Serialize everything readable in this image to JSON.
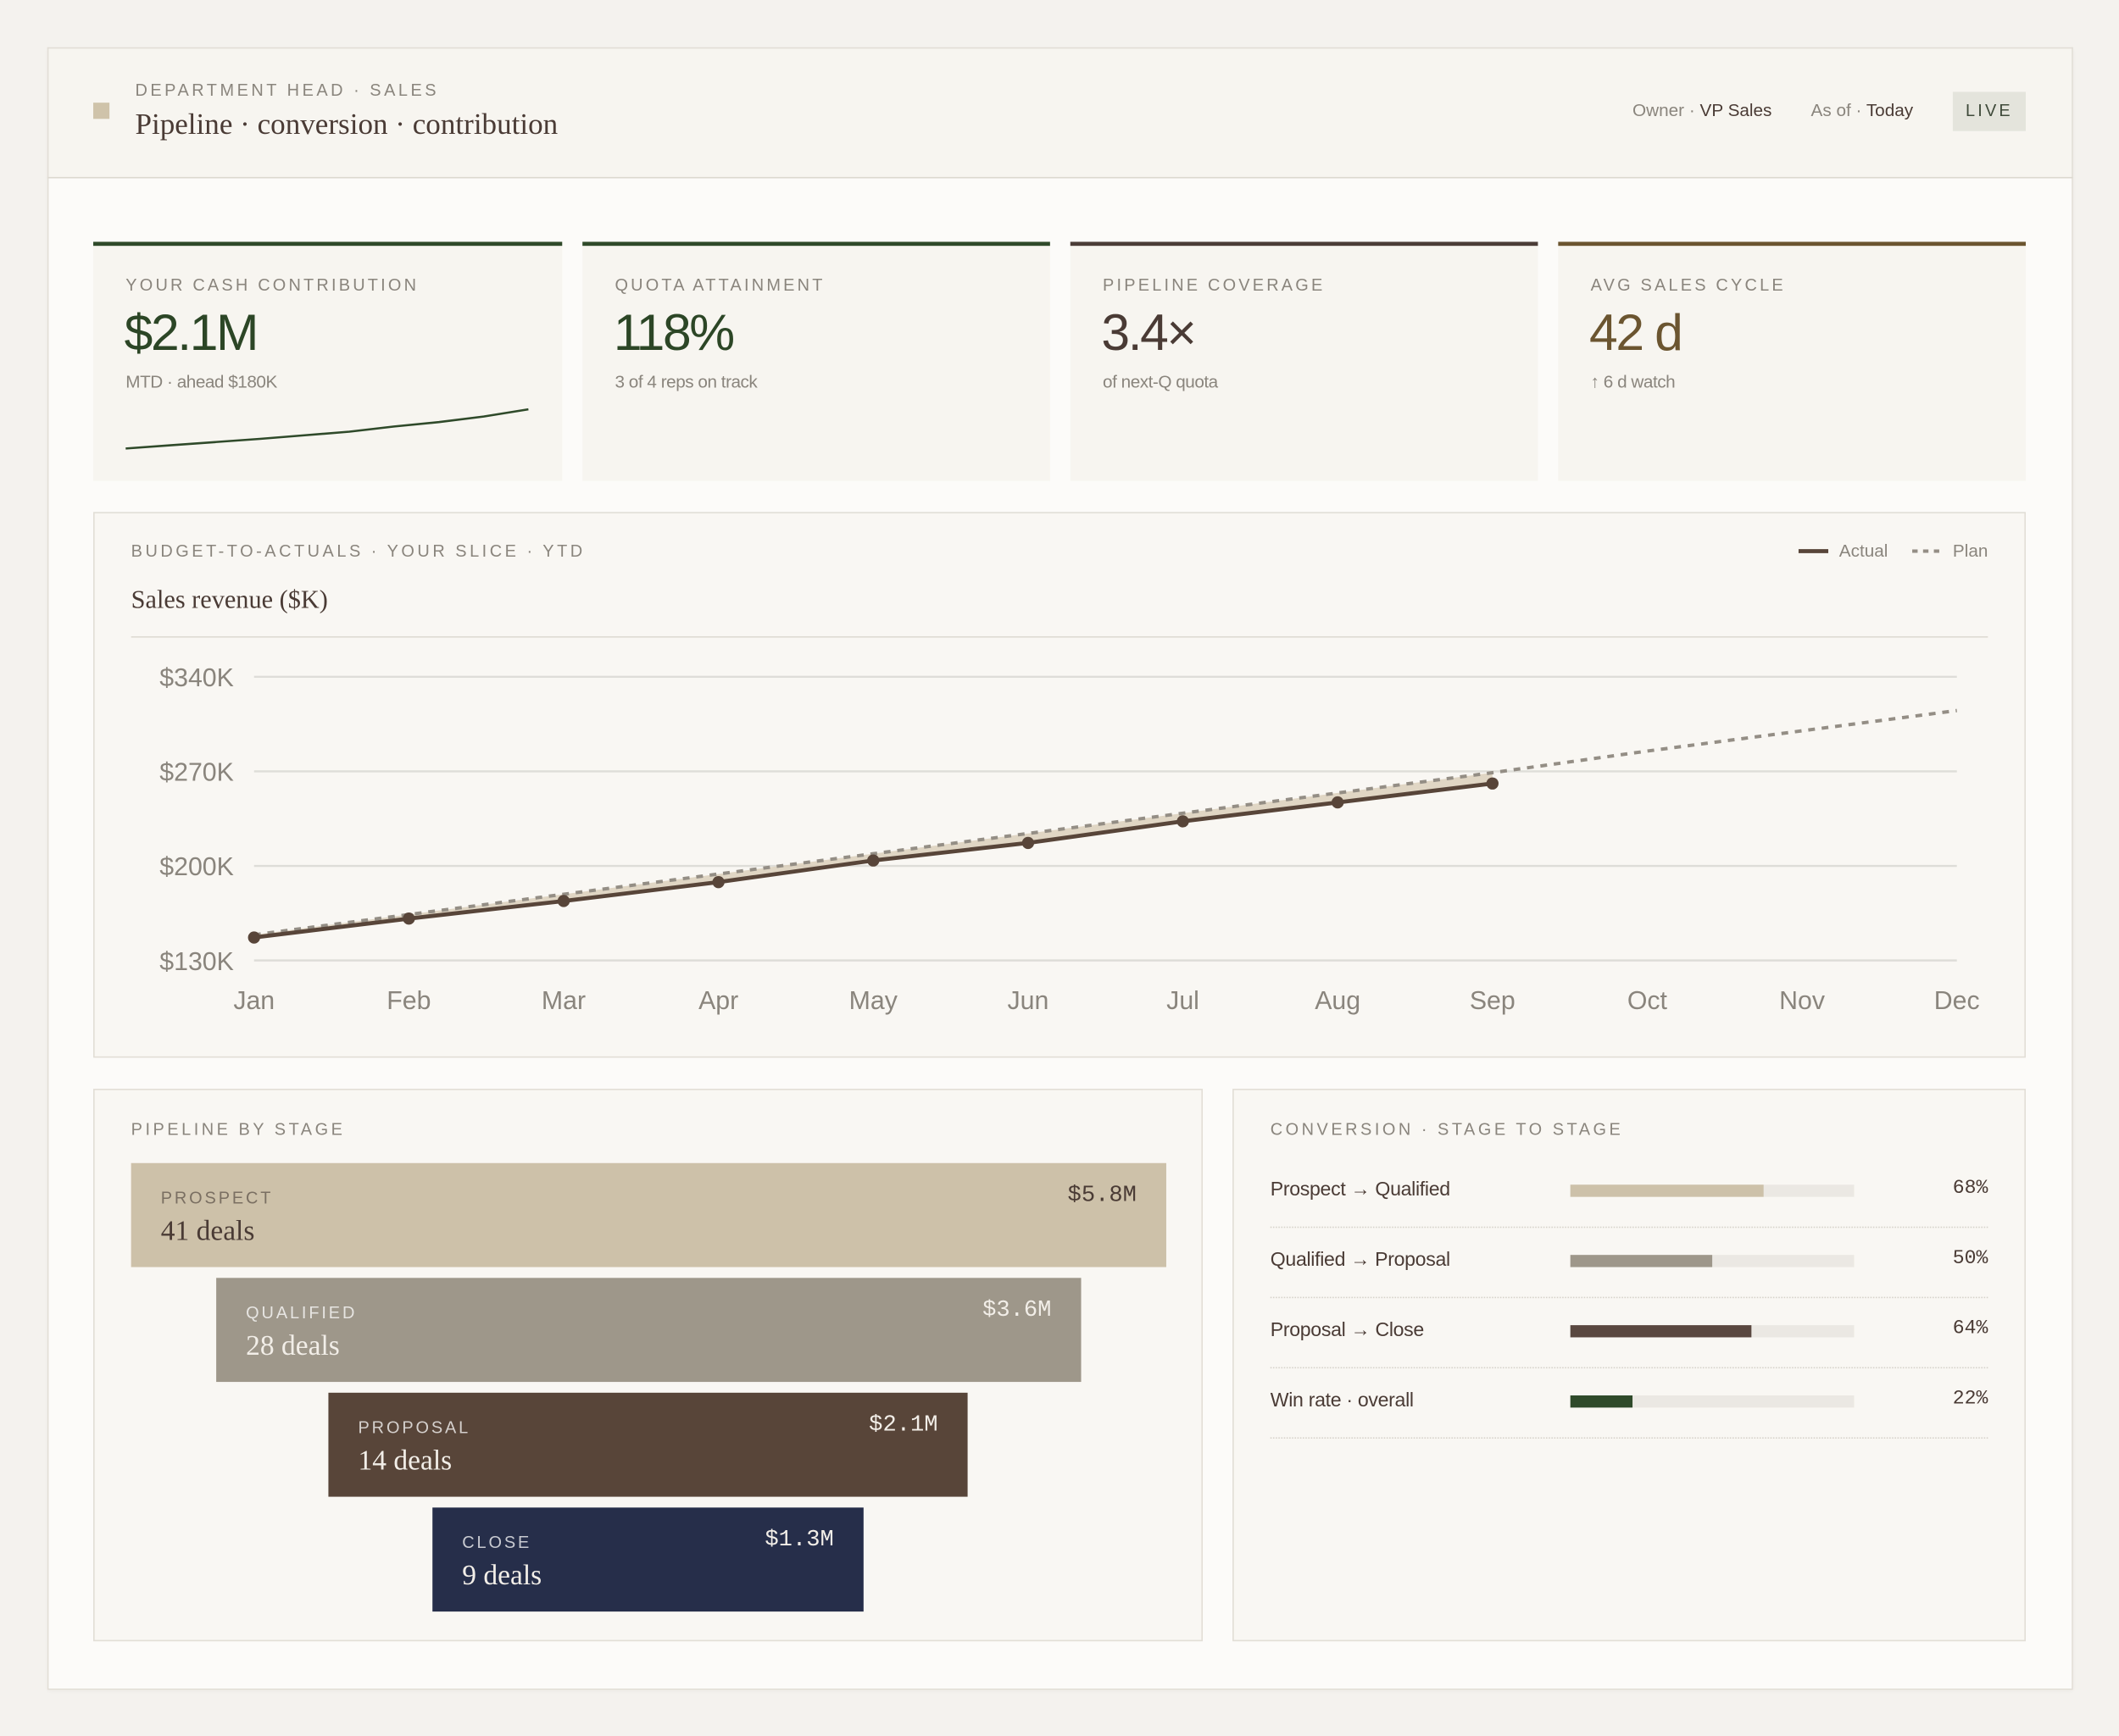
{
  "header": {
    "eyebrow": "DEPARTMENT HEAD · SALES",
    "title": "Pipeline · conversion · contribution",
    "owner_label": "Owner ·",
    "owner": "VP Sales",
    "asof_label": "As of ·",
    "asof": "Today",
    "badge": "LIVE"
  },
  "kpis": [
    {
      "label": "YOUR CASH CONTRIBUTION",
      "value": "$2.1M",
      "sub": "MTD · ahead $180K",
      "color": "#2c4626",
      "accent": "#2f4a2a",
      "sparkline": [
        1.0,
        1.08,
        1.16,
        1.24,
        1.33,
        1.42,
        1.55,
        1.66,
        1.8,
        1.98
      ]
    },
    {
      "label": "QUOTA ATTAINMENT",
      "value": "118%",
      "sub": "3 of 4 reps on track",
      "color": "#2c4626",
      "accent": "#2f4a2a"
    },
    {
      "label": "PIPELINE COVERAGE",
      "value": "3.4×",
      "sub": "of next-Q quota",
      "color": "#4a3b35",
      "accent": "#4b3d38"
    },
    {
      "label": "AVG SALES CYCLE",
      "value": "42 d",
      "sub": "↑ 6 d watch",
      "color": "#6b5530",
      "accent": "#6b5530"
    }
  ],
  "funnel": {
    "title": "PIPELINE BY STAGE",
    "stages": [
      {
        "name": "PROSPECT",
        "deals": "41 deals",
        "value": "$5.8M",
        "color": "#cdc1a9"
      },
      {
        "name": "QUALIFIED",
        "deals": "28 deals",
        "value": "$3.6M",
        "color": "#9e978a"
      },
      {
        "name": "PROPOSAL",
        "deals": "14 deals",
        "value": "$2.1M",
        "color": "#584539"
      },
      {
        "name": "CLOSE",
        "deals": "9 deals",
        "value": "$1.3M",
        "color": "#262e4a"
      }
    ]
  },
  "chart_data": [
    {
      "type": "line",
      "title": "BUDGET-TO-ACTUALS · YOUR SLICE · YTD",
      "subtitle": "Sales revenue ($K)",
      "legend": "top-right",
      "grid": true,
      "categories": [
        "Jan",
        "Feb",
        "Mar",
        "Apr",
        "May",
        "Jun",
        "Jul",
        "Aug",
        "Sep",
        "Oct",
        "Nov",
        "Dec"
      ],
      "series": [
        {
          "name": "Actual",
          "color": "#584539",
          "dash": false,
          "markers": true,
          "values": [
            147,
            161,
            174,
            188,
            204,
            217,
            233,
            247,
            261,
            null,
            null,
            null
          ]
        },
        {
          "name": "Plan",
          "color": "#948e85",
          "dash": true,
          "markers": false,
          "values": [
            149,
            164,
            179,
            194,
            209,
            224,
            239,
            254,
            269,
            285,
            300,
            315
          ]
        }
      ],
      "fill_between": "#d9cdb8",
      "ylim": [
        130,
        340
      ],
      "yticks": [
        {
          "value": 130,
          "label": "$130K"
        },
        {
          "value": 200,
          "label": "$200K"
        },
        {
          "value": 270,
          "label": "$270K"
        },
        {
          "value": 340,
          "label": "$340K"
        }
      ]
    },
    {
      "type": "bar",
      "orientation": "horizontal",
      "title": "CONVERSION · STAGE TO STAGE",
      "categories": [
        "Prospect → Qualified",
        "Qualified → Proposal",
        "Proposal → Close",
        "Win rate · overall"
      ],
      "values": [
        68,
        50,
        64,
        22
      ],
      "value_labels": [
        "68%",
        "50%",
        "64%",
        "22%"
      ],
      "colors": [
        "#cdc1a9",
        "#9e978a",
        "#5a4840",
        "#2f4a2a"
      ],
      "xlim": [
        0,
        100
      ]
    }
  ]
}
